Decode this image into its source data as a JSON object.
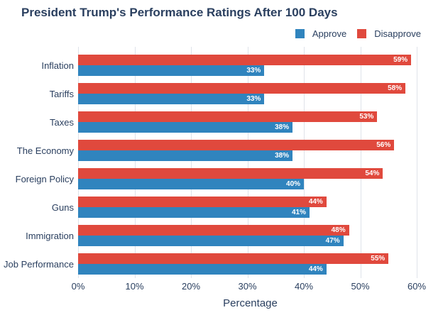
{
  "chart_data": {
    "type": "bar",
    "orientation": "horizontal",
    "title": "President Trump's Performance Ratings After 100 Days",
    "xlabel": "Percentage",
    "ylabel": "",
    "xlim": [
      0,
      60
    ],
    "grid": true,
    "legend_position": "top-right",
    "bar_label_position": "inside-end",
    "bar_label_color": "#ffffff",
    "x_tick_values": [
      0,
      10,
      20,
      30,
      40,
      50,
      60
    ],
    "x_tick_labels": [
      "0%",
      "10%",
      "20%",
      "30%",
      "40%",
      "50%",
      "60%"
    ],
    "categories": [
      "Inflation",
      "Tariffs",
      "Taxes",
      "The Economy",
      "Foreign Policy",
      "Guns",
      "Immigration",
      "Job Performance"
    ],
    "series": [
      {
        "name": "Approve",
        "color": "#3084BE",
        "values": [
          33,
          33,
          38,
          38,
          40,
          41,
          47,
          44
        ],
        "labels": [
          "33%",
          "33%",
          "38%",
          "38%",
          "40%",
          "41%",
          "47%",
          "44%"
        ]
      },
      {
        "name": "Disapprove",
        "color": "#E0493D",
        "values": [
          59,
          58,
          53,
          56,
          54,
          44,
          48,
          55
        ],
        "labels": [
          "59%",
          "58%",
          "53%",
          "56%",
          "54%",
          "44%",
          "48%",
          "55%"
        ]
      }
    ]
  },
  "colors": {
    "text": "#2a3f5f",
    "approve": "#3084BE",
    "disapprove": "#E0493D",
    "gridline": "#dfe3ea",
    "background": "#ffffff"
  }
}
